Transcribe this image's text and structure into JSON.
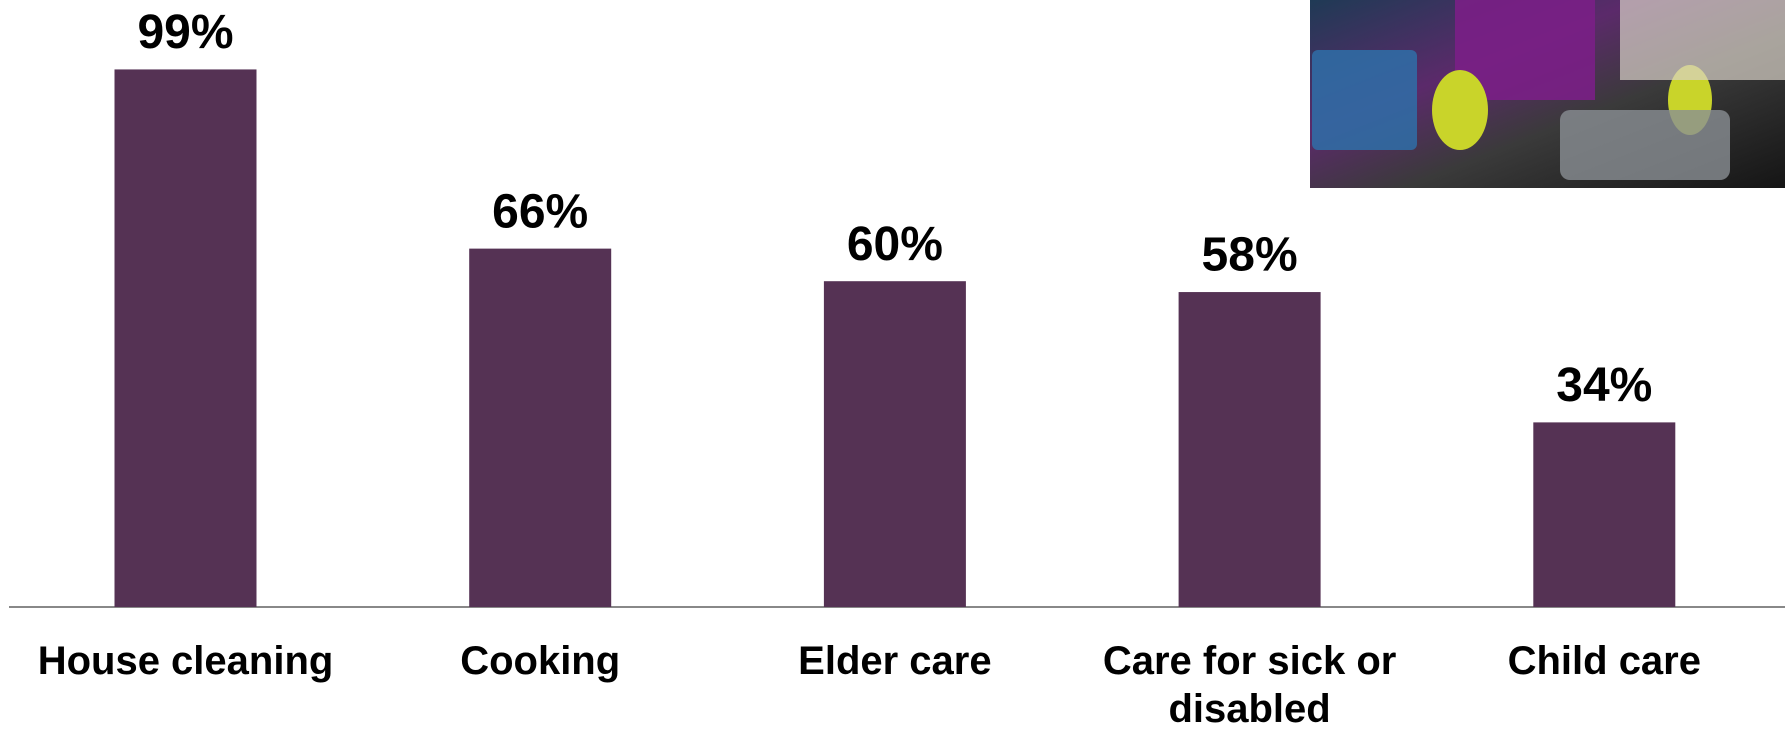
{
  "chart_data": {
    "type": "bar",
    "categories": [
      "House cleaning",
      "Cooking",
      "Elder care",
      "Care for sick or disabled",
      "Child care"
    ],
    "values": [
      99,
      66,
      60,
      58,
      34
    ],
    "value_labels": [
      "99%",
      "66%",
      "60%",
      "58%",
      "34%"
    ],
    "color": "#553254",
    "ylim": [
      0,
      100
    ]
  }
}
